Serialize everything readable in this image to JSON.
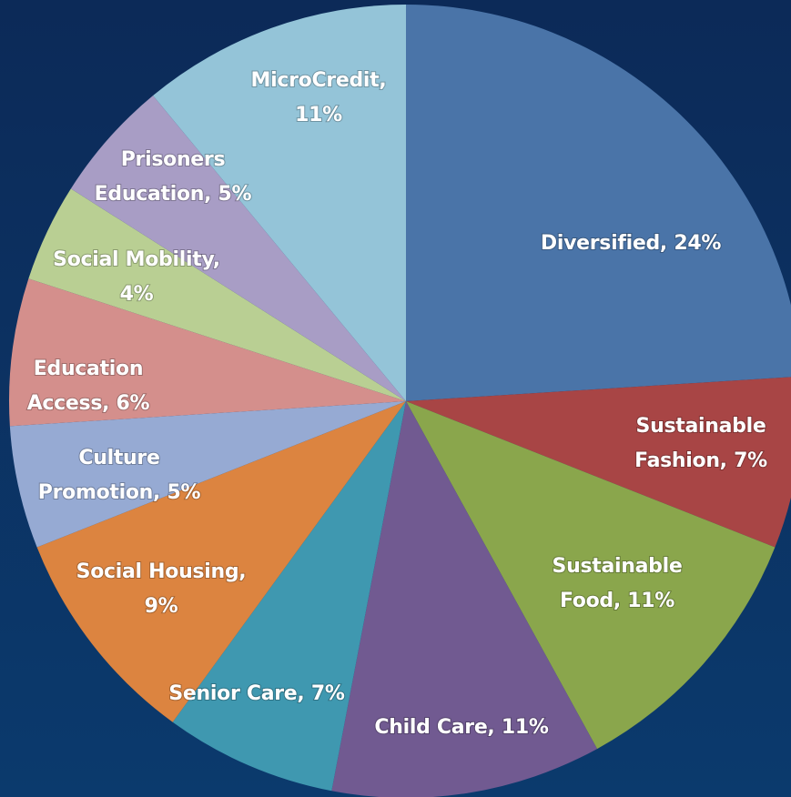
{
  "chart_data": {
    "type": "pie",
    "values": [
      24,
      7,
      11,
      11,
      7,
      9,
      5,
      6,
      4,
      5,
      11
    ],
    "value_labels": [
      [
        "Diversified, 24%"
      ],
      [
        "Sustainable",
        "Fashion, 7%"
      ],
      [
        "Sustainable",
        "Food, 11%"
      ],
      [
        "Child Care, 11%"
      ],
      [
        "Senior Care, 7%"
      ],
      [
        "Social Housing,",
        "9%"
      ],
      [
        "Culture",
        "Promotion, 5%"
      ],
      [
        "Education",
        "Access, 6%"
      ],
      [
        "Social Mobility,",
        "4%"
      ],
      [
        "Prisoners",
        "Education, 5%"
      ],
      [
        "MicroCredit,",
        "11%"
      ]
    ],
    "colors": [
      "#4a74a8",
      "#a84545",
      "#8aa64c",
      "#715a91",
      "#3f98b0",
      "#dc8440",
      "#96aad3",
      "#d48f8c",
      "#b9cf93",
      "#a89dc5",
      "#94c4d8"
    ]
  }
}
